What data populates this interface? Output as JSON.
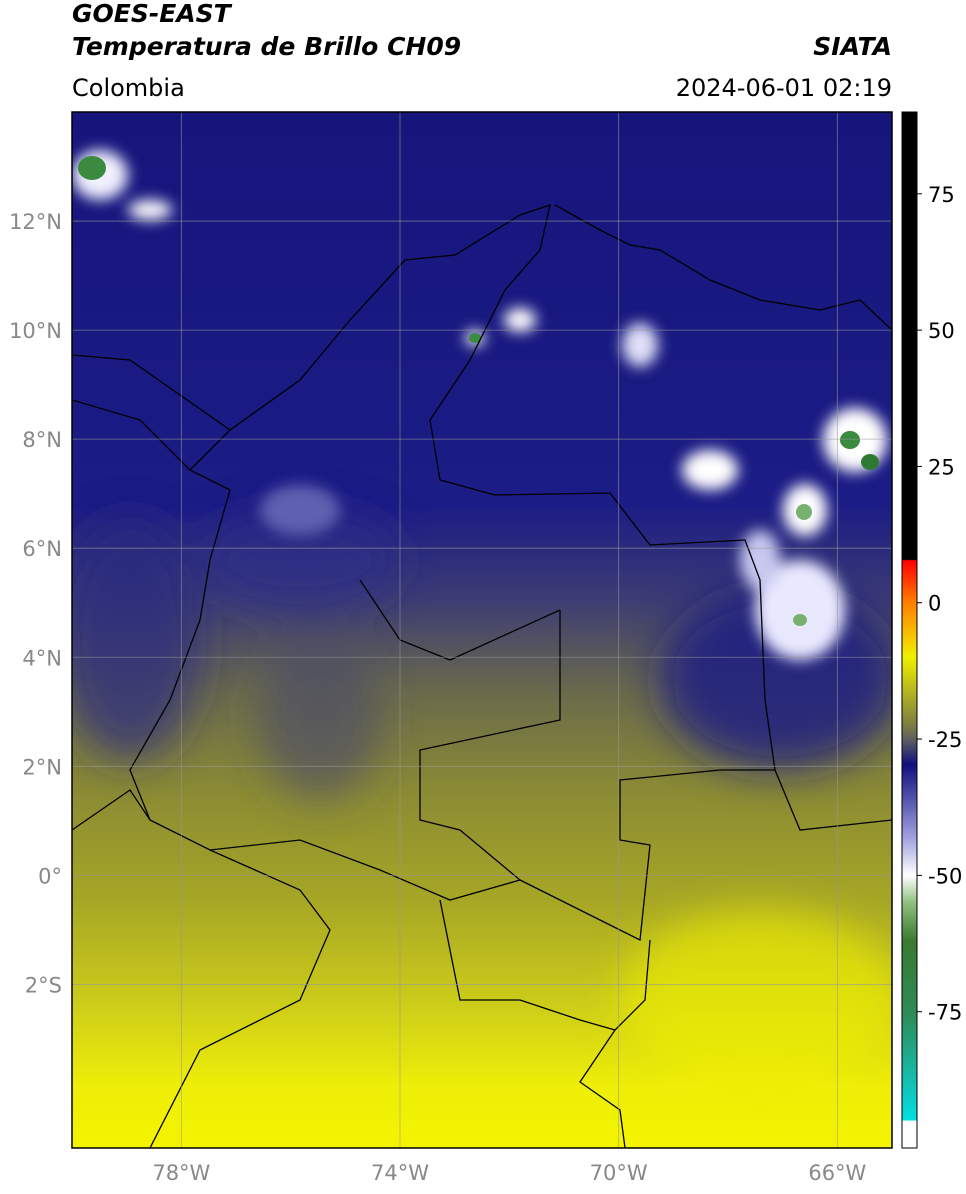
{
  "header": {
    "title": "GOES-EAST",
    "subtitle": "Temperatura de Brillo CH09",
    "source": "SIATA",
    "region": "Colombia",
    "datetime": "2024-06-01 02:19"
  },
  "map": {
    "lonlim": [
      -80,
      -65
    ],
    "latlim": [
      -5,
      14
    ],
    "grid": true,
    "lon_ticks": [
      {
        "value": -78,
        "label": "78°W"
      },
      {
        "value": -74,
        "label": "74°W"
      },
      {
        "value": -70,
        "label": "70°W"
      },
      {
        "value": -66,
        "label": "66°W"
      }
    ],
    "lat_ticks": [
      {
        "value": 12,
        "label": "12°N"
      },
      {
        "value": 10,
        "label": "10°N"
      },
      {
        "value": 8,
        "label": "8°N"
      },
      {
        "value": 6,
        "label": "6°N"
      },
      {
        "value": 4,
        "label": "4°N"
      },
      {
        "value": 2,
        "label": "2°N"
      },
      {
        "value": 0,
        "label": "0°"
      },
      {
        "value": -2,
        "label": "2°S"
      }
    ]
  },
  "colorbar": {
    "lim": [
      -100,
      90
    ],
    "ticks": [
      75,
      50,
      25,
      0,
      -25,
      -50,
      -75
    ]
  }
}
